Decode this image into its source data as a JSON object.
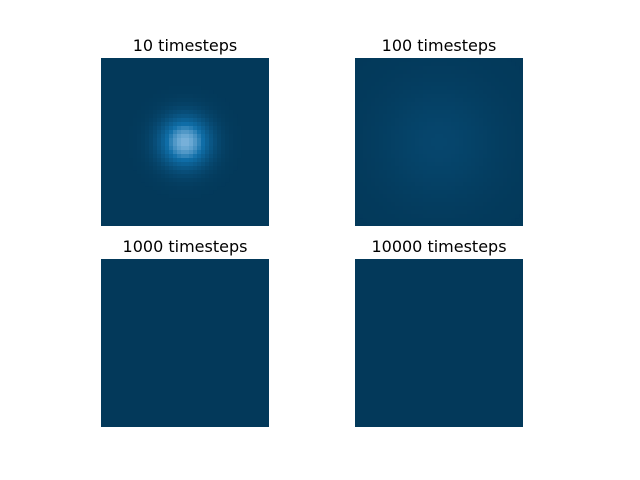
{
  "figure": {
    "background": "#ffffff"
  },
  "chart_data": [
    {
      "type": "heatmap",
      "title": "10 timesteps",
      "timesteps": 10,
      "grid_size": [
        42,
        42
      ],
      "peak": {
        "row": 21,
        "col": 21,
        "value": 0.85
      },
      "colormap": {
        "low": "#03395a",
        "mid": "#0f6ea8",
        "high": "#a8d0f0"
      },
      "axes": "off"
    },
    {
      "type": "heatmap",
      "title": "100 timesteps",
      "timesteps": 100,
      "grid_size": [
        42,
        42
      ],
      "peak": {
        "row": 21,
        "col": 21,
        "value": 0.12
      },
      "colormap": {
        "low": "#03395a",
        "mid": "#0f6ea8",
        "high": "#a8d0f0"
      },
      "axes": "off"
    },
    {
      "type": "heatmap",
      "title": "1000 timesteps",
      "timesteps": 1000,
      "grid_size": [
        42,
        42
      ],
      "peak": {
        "row": 21,
        "col": 21,
        "value": 0.0
      },
      "colormap": {
        "low": "#03395a",
        "mid": "#0f6ea8",
        "high": "#a8d0f0"
      },
      "axes": "off"
    },
    {
      "type": "heatmap",
      "title": "10000 timesteps",
      "timesteps": 10000,
      "grid_size": [
        42,
        42
      ],
      "peak": {
        "row": 21,
        "col": 21,
        "value": 0.0
      },
      "colormap": {
        "low": "#03395a",
        "mid": "#0f6ea8",
        "high": "#a8d0f0"
      },
      "axes": "off"
    }
  ]
}
